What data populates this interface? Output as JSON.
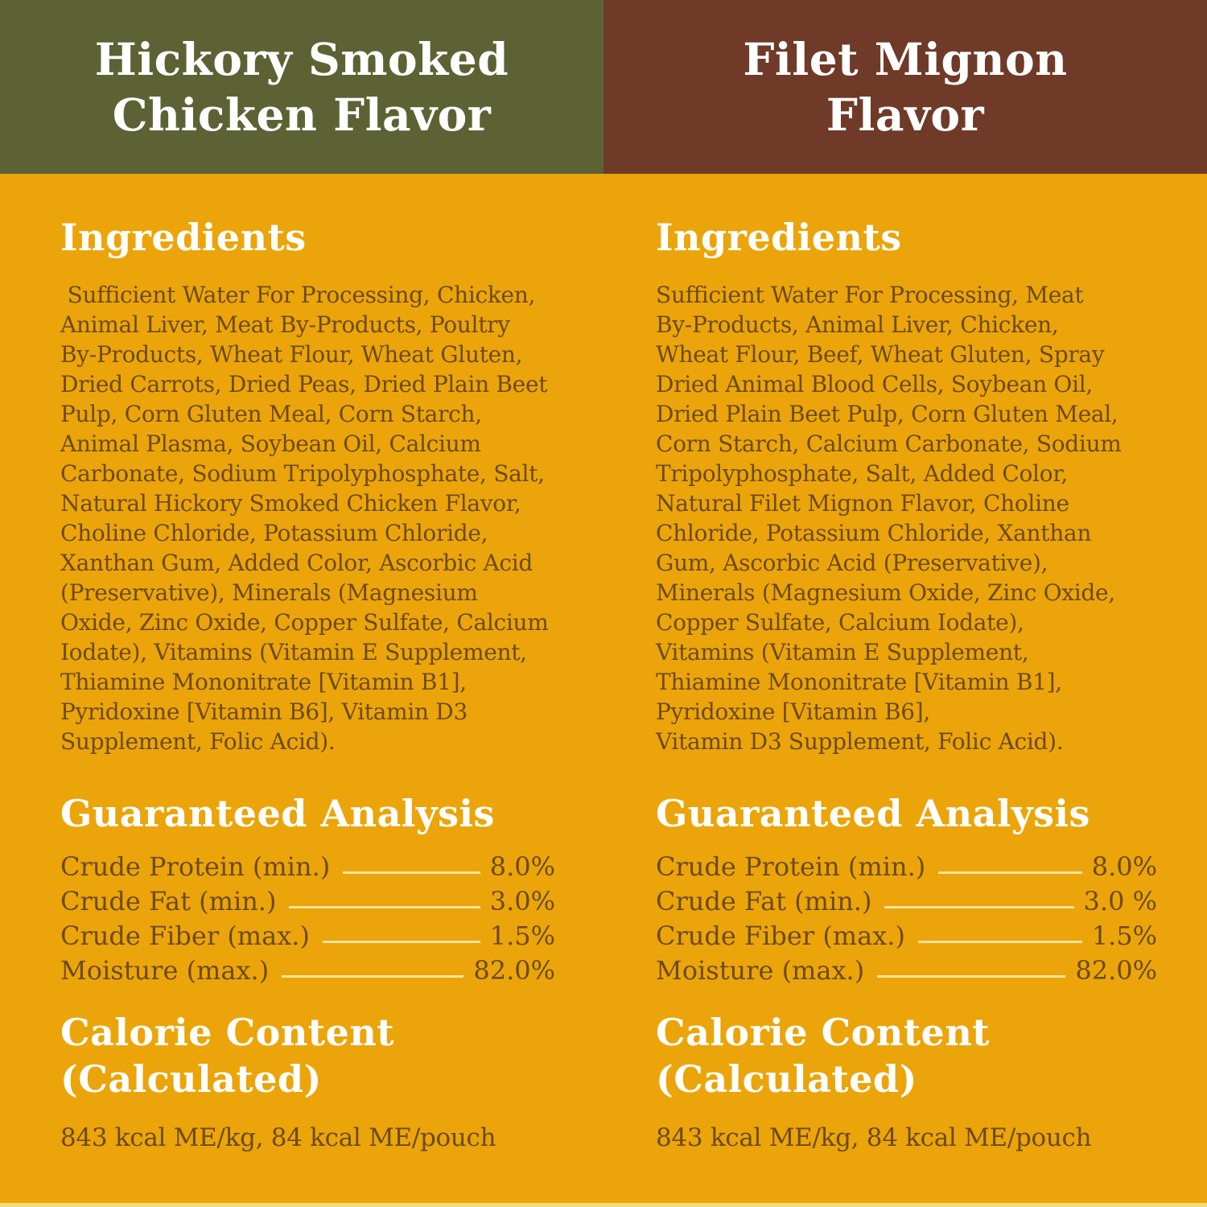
{
  "colors": {
    "background_orange": "#eba50a",
    "header_green": "#5c6234",
    "header_brown": "#6f3a28",
    "text_brown": "#6d4a16",
    "heading_white": "#ffffff",
    "leader_line": "#f8e49e",
    "bottom_edge": "#f6d87e"
  },
  "left": {
    "header": "Hickory Smoked\nChicken Flavor",
    "ingredients_title": "Ingredients",
    "ingredients_text": " Sufficient Water For Processing, Chicken,\nAnimal Liver, Meat By-Products, Poultry\nBy-Products, Wheat Flour, Wheat Gluten,\nDried Carrots, Dried Peas, Dried Plain Beet\nPulp, Corn Gluten Meal, Corn Starch,\nAnimal Plasma, Soybean Oil, Calcium\nCarbonate, Sodium Tripolyphosphate, Salt,\nNatural Hickory Smoked Chicken Flavor,\nCholine Chloride, Potassium Chloride,\nXanthan Gum, Added Color, Ascorbic Acid\n(Preservative), Minerals (Magnesium\nOxide, Zinc Oxide, Copper Sulfate, Calcium\nIodate), Vitamins (Vitamin E Supplement,\nThiamine Mononitrate [Vitamin B1],\nPyridoxine [Vitamin B6], Vitamin D3\nSupplement, Folic Acid).",
    "analysis_title": "Guaranteed Analysis",
    "analysis_rows": [
      {
        "label": "Crude Protein (min.)",
        "value": "8.0%"
      },
      {
        "label": "Crude Fat (min.)",
        "value": "3.0%"
      },
      {
        "label": "Crude Fiber (max.)",
        "value": "1.5%"
      },
      {
        "label": "Moisture (max.)",
        "value": "82.0%"
      }
    ],
    "calorie_title": "Calorie Content\n(Calculated)",
    "calorie_text": "843 kcal ME/kg, 84 kcal ME/pouch"
  },
  "right": {
    "header": "Filet Mignon\nFlavor",
    "ingredients_title": "Ingredients",
    "ingredients_text": "Sufficient Water For Processing, Meat\nBy-Products, Animal Liver, Chicken,\nWheat Flour, Beef, Wheat Gluten, Spray\nDried Animal Blood Cells, Soybean Oil,\nDried Plain Beet Pulp, Corn Gluten Meal,\nCorn Starch, Calcium Carbonate, Sodium\nTripolyphosphate, Salt, Added Color,\nNatural Filet Mignon Flavor, Choline\nChloride, Potassium Chloride, Xanthan\nGum, Ascorbic Acid (Preservative),\nMinerals (Magnesium Oxide, Zinc Oxide,\nCopper Sulfate, Calcium Iodate),\nVitamins (Vitamin E Supplement,\nThiamine Mononitrate [Vitamin B1],\nPyridoxine [Vitamin B6],\nVitamin D3 Supplement, Folic Acid).",
    "analysis_title": "Guaranteed Analysis",
    "analysis_rows": [
      {
        "label": "Crude Protein (min.)",
        "value": "8.0%"
      },
      {
        "label": "Crude Fat (min.)",
        "value": "3.0 %"
      },
      {
        "label": "Crude Fiber (max.)",
        "value": "1.5%"
      },
      {
        "label": "Moisture (max.)",
        "value": "82.0%"
      }
    ],
    "calorie_title": "Calorie Content\n(Calculated)",
    "calorie_text": "843 kcal ME/kg, 84 kcal ME/pouch"
  }
}
